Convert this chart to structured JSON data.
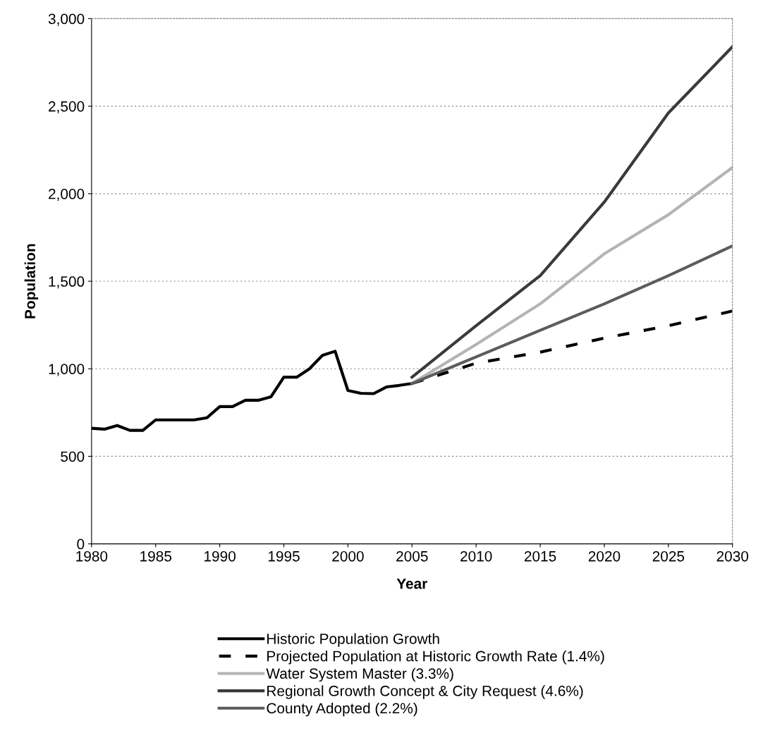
{
  "chart_data": {
    "type": "line",
    "xlabel": "Year",
    "ylabel": "Population",
    "xlim": [
      1980,
      2030
    ],
    "xticks": [
      1980,
      1985,
      1990,
      1995,
      2000,
      2005,
      2010,
      2015,
      2020,
      2025,
      2030
    ],
    "ylim": [
      0,
      3000
    ],
    "yticks": [
      0,
      500,
      {
        "value": 1000,
        "label": "1,000"
      },
      {
        "value": 1500,
        "label": "1,500"
      },
      {
        "value": 2000,
        "label": "2,000"
      },
      {
        "value": 2500,
        "label": "2,500"
      },
      {
        "value": 3000,
        "label": "3,000"
      }
    ],
    "grid": "y",
    "legend": "bottom",
    "marker": "none",
    "series": [
      {
        "name": "Historic Population Growth",
        "color": "#000000",
        "line_style": "solid",
        "x": [
          1980,
          1981,
          1982,
          1983,
          1984,
          1985,
          1986,
          1987,
          1988,
          1989,
          1990,
          1991,
          1992,
          1993,
          1994,
          1995,
          1996,
          1997,
          1998,
          1999,
          2000,
          2001,
          2002,
          2003,
          2004,
          2005
        ],
        "values": [
          660,
          655,
          676,
          648,
          648,
          708,
          708,
          708,
          708,
          720,
          784,
          784,
          820,
          820,
          840,
          952,
          952,
          1000,
          1076,
          1100,
          876,
          860,
          858,
          896,
          905,
          916
        ]
      },
      {
        "name": "Projected Population at Historic Growth Rate (1.4%)",
        "color": "#000000",
        "line_style": "dashed",
        "x": [
          2005,
          2010,
          2015,
          2020,
          2025,
          2030
        ],
        "values": [
          916,
          1032,
          1095,
          1175,
          1246,
          1330
        ]
      },
      {
        "name": "Water System Master (3.3%)",
        "color": "#b4b4b4",
        "line_style": "solid",
        "x": [
          2005,
          2010,
          2015,
          2020,
          2025,
          2030
        ],
        "values": [
          916,
          1139,
          1371,
          1657,
          1880,
          2150
        ]
      },
      {
        "name": "Regional Growth Concept & City Request (4.6%)",
        "color": "#3a3a3a",
        "line_style": "solid",
        "x": [
          2005,
          2010,
          2015,
          2020,
          2025,
          2030
        ],
        "values": [
          952,
          1246,
          1532,
          1952,
          2461,
          2840
        ]
      },
      {
        "name": "County Adopted (2.2%)",
        "color": "#5c5c5c",
        "line_style": "solid",
        "x": [
          2005,
          2010,
          2015,
          2020,
          2025,
          2030
        ],
        "values": [
          916,
          1068,
          1220,
          1371,
          1532,
          1702
        ]
      }
    ]
  }
}
